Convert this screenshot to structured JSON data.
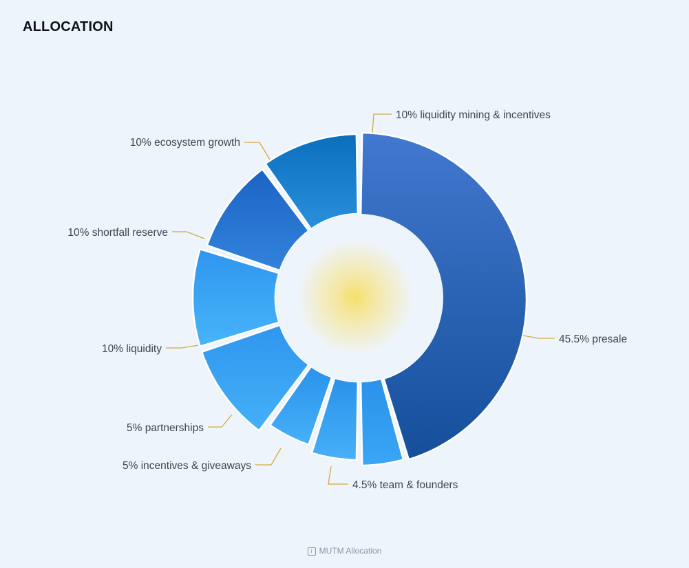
{
  "header": {
    "title": "ALLOCATION"
  },
  "caption": {
    "icon": "info-icon",
    "text": "MUTM Allocation"
  },
  "colors": {
    "background": "#eef4fc",
    "leader_line": "#d4a93a",
    "label_text": "#3d4450",
    "center_glow": "#f5e27a"
  },
  "chart_data": {
    "type": "pie",
    "title": "ALLOCATION",
    "style": "donut",
    "slices": [
      {
        "label": "45.5% presale",
        "value": 45.5,
        "color_top": "#4278cf",
        "color_bottom": "#154f9a",
        "label_side": "right"
      },
      {
        "label": "4.5% team & founders",
        "value": 4.5,
        "color_top": "#2a92ea",
        "color_bottom": "#3aa6f5",
        "label_side": "right"
      },
      {
        "label": "5% incentives & giveaways",
        "value": 5,
        "color_top": "#2a92ea",
        "color_bottom": "#46b0f8",
        "label_side": "left"
      },
      {
        "label": "5% partnerships",
        "value": 5,
        "color_top": "#2a92ea",
        "color_bottom": "#46b0f8",
        "label_side": "left"
      },
      {
        "label": "10% liquidity",
        "value": 10,
        "color_top": "#2e96ee",
        "color_bottom": "#45b0f8",
        "label_side": "left"
      },
      {
        "label": "10% shortfall reserve",
        "value": 10,
        "color_top": "#2e96ee",
        "color_bottom": "#48b4fa",
        "label_side": "left"
      },
      {
        "label": "10% ecosystem growth",
        "value": 10,
        "color_top": "#1c63c4",
        "color_bottom": "#3283dc",
        "label_side": "left"
      },
      {
        "label": "10% liquidity mining & incentives",
        "value": 10,
        "color_top": "#0a6fbd",
        "color_bottom": "#2a90dc",
        "label_side": "right"
      }
    ]
  }
}
